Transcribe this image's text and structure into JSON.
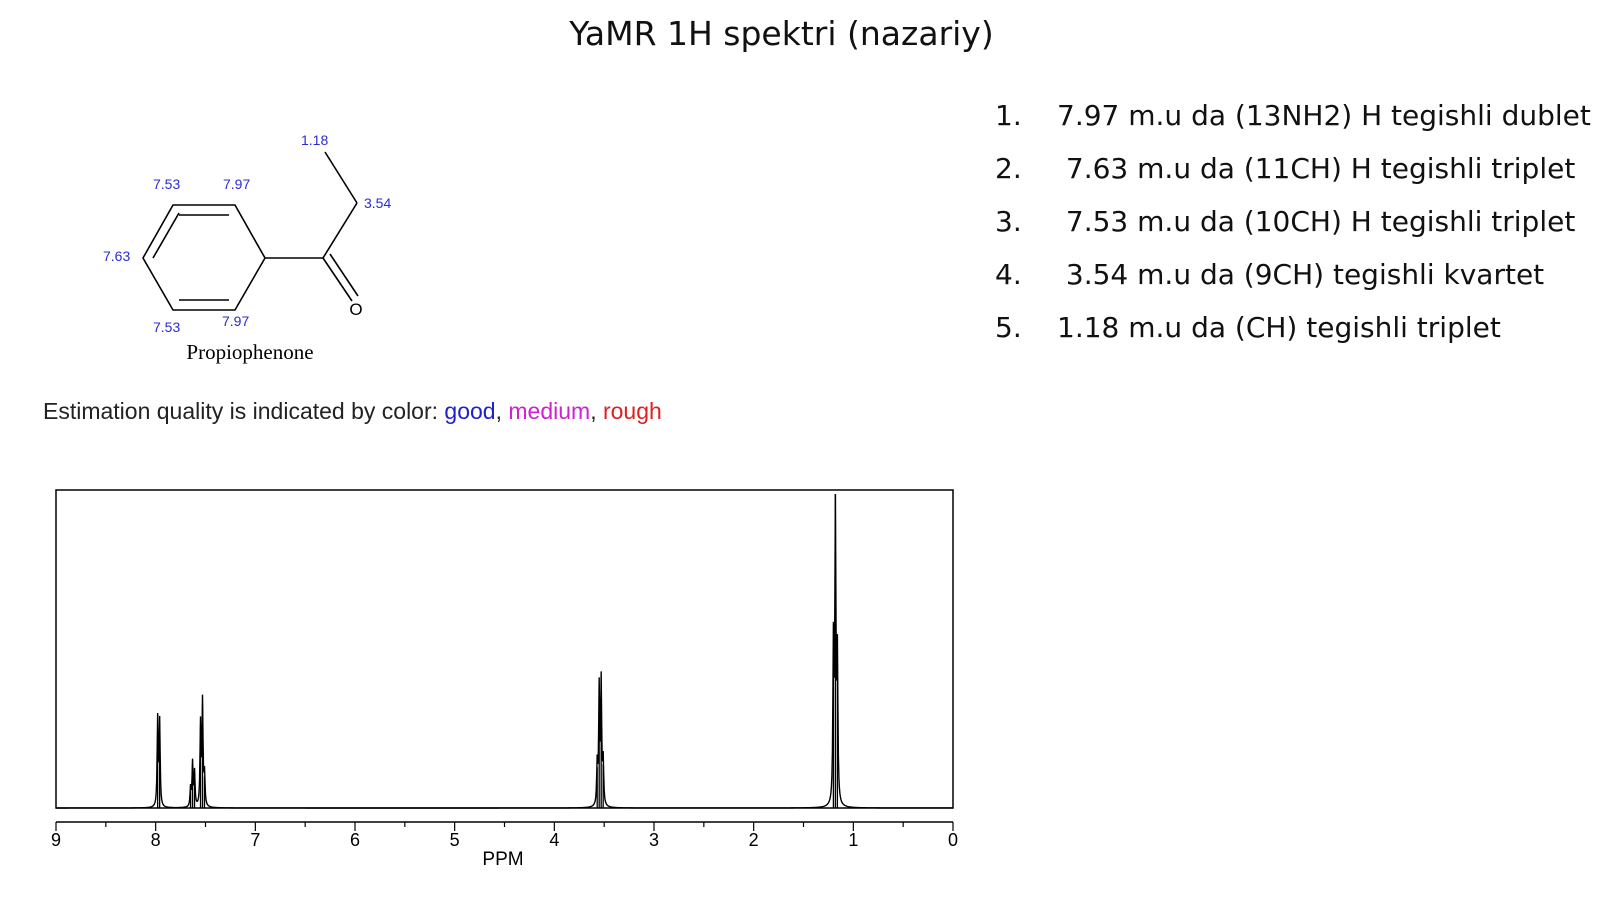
{
  "title": "YaMR 1H spektri (nazariy)",
  "assignments": [
    {
      "num": "1.",
      "text": "7.97 m.u da (13NH2) H tegishli dublet"
    },
    {
      "num": "2.",
      "text": " 7.63 m.u da (11CH) H tegishli triplet"
    },
    {
      "num": "3.",
      "text": " 7.53 m.u da (10CH) H tegishli triplet"
    },
    {
      "num": "4.",
      "text": " 3.54 m.u da (9CH) tegishli kvartet"
    },
    {
      "num": "5.",
      "text": "1.18 m.u da (CH) tegishli triplet"
    }
  ],
  "molecule": {
    "name": "Propiophenone",
    "oxygen_label": "O",
    "shift_labels": {
      "methyl": "1.18",
      "methylene": "3.54",
      "ortho_top": "7.97",
      "meta_top": "7.53",
      "para": "7.63",
      "meta_bottom": "7.53",
      "ortho_bottom": "7.97"
    },
    "label_color": "#2b2bd6"
  },
  "estimation": {
    "prefix": "Estimation quality is indicated by color: ",
    "good": "good",
    "sep1": ", ",
    "medium": "medium",
    "sep2": ", ",
    "rough": "rough",
    "colors": {
      "good": "#1f1fd0",
      "medium": "#d21fd2",
      "rough": "#e01f1f"
    }
  },
  "chart_data": {
    "type": "line",
    "xlabel": "PPM",
    "ylabel": "",
    "x_reversed": true,
    "xlim": [
      9,
      0
    ],
    "ylim": [
      0,
      1
    ],
    "xticks": [
      "9",
      "8",
      "7",
      "6",
      "5",
      "4",
      "3",
      "2",
      "1",
      "0"
    ],
    "grid": false,
    "peaks": [
      {
        "x": 7.98,
        "height": 0.28
      },
      {
        "x": 7.96,
        "height": 0.27
      },
      {
        "x": 7.65,
        "height": 0.06
      },
      {
        "x": 7.63,
        "height": 0.14
      },
      {
        "x": 7.61,
        "height": 0.11
      },
      {
        "x": 7.55,
        "height": 0.26
      },
      {
        "x": 7.53,
        "height": 0.33
      },
      {
        "x": 7.51,
        "height": 0.1
      },
      {
        "x": 3.57,
        "height": 0.13
      },
      {
        "x": 3.55,
        "height": 0.37
      },
      {
        "x": 3.53,
        "height": 0.39
      },
      {
        "x": 3.51,
        "height": 0.14
      },
      {
        "x": 1.2,
        "height": 0.5
      },
      {
        "x": 1.18,
        "height": 1.0
      },
      {
        "x": 1.16,
        "height": 0.46
      }
    ]
  }
}
